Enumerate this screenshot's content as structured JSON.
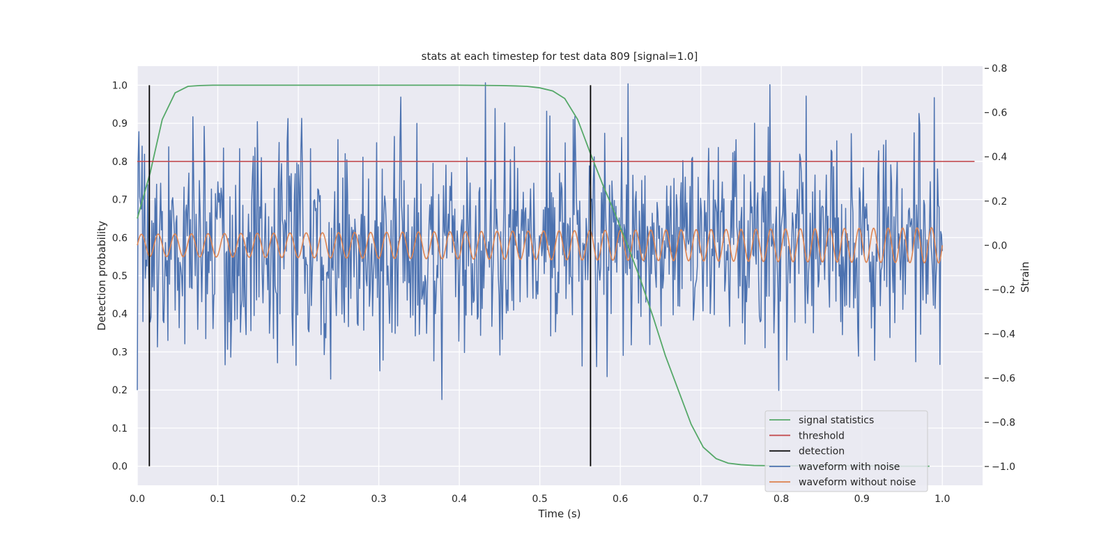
{
  "chart_data": {
    "type": "line",
    "title": "stats at each timestep for test data 809 [signal=1.0]",
    "xlabel": "Time (s)",
    "ylabel": "Detection probability",
    "y2label": "Strain",
    "xlim": [
      0.0,
      1.05
    ],
    "ylim": [
      -0.05,
      1.05
    ],
    "y2lim": [
      -1.085,
      0.81
    ],
    "xticks": [
      "0.0",
      "0.1",
      "0.2",
      "0.3",
      "0.4",
      "0.5",
      "0.6",
      "0.7",
      "0.8",
      "0.9",
      "1.0"
    ],
    "yticks": [
      "0.0",
      "0.1",
      "0.2",
      "0.3",
      "0.4",
      "0.5",
      "0.6",
      "0.7",
      "0.8",
      "0.9",
      "1.0"
    ],
    "y2ticks": [
      "−1.0",
      "−0.8",
      "−0.6",
      "−0.4",
      "−0.2",
      "0.0",
      "0.2",
      "0.4",
      "0.6",
      "0.8"
    ],
    "grid": true,
    "legend_position": "lower-right",
    "series": [
      {
        "name": "signal statistics",
        "color": "#55a868",
        "x": [
          0.0,
          0.016,
          0.031,
          0.047,
          0.063,
          0.078,
          0.094,
          0.109,
          0.125,
          0.2,
          0.3,
          0.4,
          0.45,
          0.47,
          0.484,
          0.5,
          0.516,
          0.531,
          0.547,
          0.563,
          0.578,
          0.594,
          0.609,
          0.625,
          0.641,
          0.656,
          0.672,
          0.688,
          0.703,
          0.719,
          0.734,
          0.75,
          0.766,
          0.8,
          0.85,
          0.9,
          0.95,
          0.984
        ],
        "y": [
          0.65,
          0.77,
          0.91,
          0.98,
          0.997,
          0.999,
          1.0,
          1.0,
          1.0,
          1.0,
          1.0,
          1.0,
          0.999,
          0.998,
          0.997,
          0.993,
          0.985,
          0.965,
          0.91,
          0.82,
          0.74,
          0.66,
          0.58,
          0.49,
          0.39,
          0.29,
          0.2,
          0.11,
          0.05,
          0.02,
          0.008,
          0.004,
          0.002,
          0.001,
          0.001,
          0.001,
          0.0,
          0.0
        ]
      },
      {
        "name": "threshold",
        "color": "#c44e52",
        "x": [
          0.0,
          1.04
        ],
        "y": [
          0.8,
          0.8
        ]
      },
      {
        "name": "detection",
        "color": "#000000",
        "x_positions": [
          0.015,
          0.563
        ],
        "y_range": [
          0.0,
          1.0
        ]
      },
      {
        "name": "waveform with noise",
        "color": "#4c72b0",
        "axis": "right",
        "x_range": [
          0.0,
          1.0
        ],
        "sample_count": 1000,
        "approx_std": 0.24
      },
      {
        "name": "waveform without noise",
        "color": "#dd8452",
        "axis": "right",
        "x_range": [
          0.0,
          1.0
        ],
        "approx_cycles": 50,
        "amplitude_start": 0.05,
        "amplitude_end": 0.08
      }
    ]
  }
}
